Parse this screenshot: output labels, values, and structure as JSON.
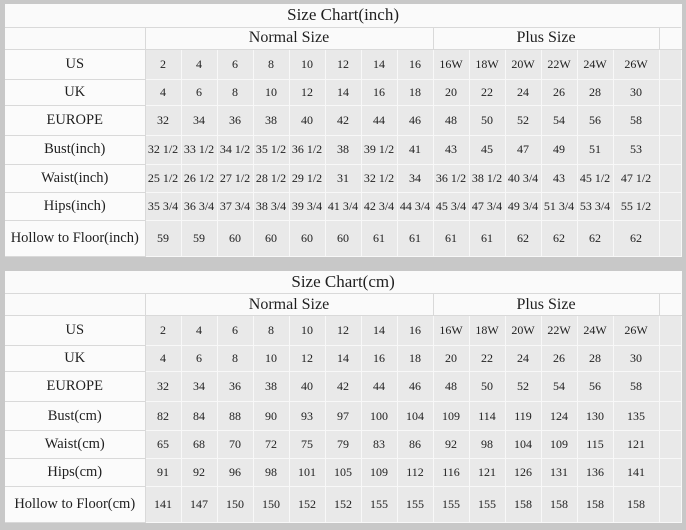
{
  "page": {
    "outer_background": "#c8c8c8",
    "table_background": "#fafafa",
    "data_cell_background": "#e9e9e9",
    "grid_line_light": "#f8f8f8",
    "grid_line_dark": "#d9d9d9",
    "text_color": "#1f1f1f"
  },
  "chart_data": [
    {
      "type": "table",
      "title": "Size Chart(inch)",
      "normal_label": "Normal Size",
      "plus_label": "Plus Size",
      "normal_columns": 8,
      "plus_columns": 6,
      "rows": [
        {
          "label": "US",
          "values": [
            "2",
            "4",
            "6",
            "8",
            "10",
            "12",
            "14",
            "16",
            "16W",
            "18W",
            "20W",
            "22W",
            "24W",
            "26W"
          ]
        },
        {
          "label": "UK",
          "values": [
            "4",
            "6",
            "8",
            "10",
            "12",
            "14",
            "16",
            "18",
            "20",
            "22",
            "24",
            "26",
            "28",
            "30"
          ]
        },
        {
          "label": "EUROPE",
          "values": [
            "32",
            "34",
            "36",
            "38",
            "40",
            "42",
            "44",
            "46",
            "48",
            "50",
            "52",
            "54",
            "56",
            "58"
          ]
        },
        {
          "label": "Bust(inch)",
          "values": [
            "32 1/2",
            "33 1/2",
            "34 1/2",
            "35 1/2",
            "36 1/2",
            "38",
            "39 1/2",
            "41",
            "43",
            "45",
            "47",
            "49",
            "51",
            "53"
          ]
        },
        {
          "label": "Waist(inch)",
          "values": [
            "25 1/2",
            "26 1/2",
            "27 1/2",
            "28 1/2",
            "29 1/2",
            "31",
            "32 1/2",
            "34",
            "36 1/2",
            "38 1/2",
            "40 3/4",
            "43",
            "45 1/2",
            "47 1/2"
          ]
        },
        {
          "label": "Hips(inch)",
          "values": [
            "35 3/4",
            "36 3/4",
            "37 3/4",
            "38 3/4",
            "39 3/4",
            "41 3/4",
            "42 3/4",
            "44 3/4",
            "45 3/4",
            "47 3/4",
            "49 3/4",
            "51 3/4",
            "53 3/4",
            "55 1/2"
          ]
        },
        {
          "label": "Hollow to Floor(inch)",
          "values": [
            "59",
            "59",
            "60",
            "60",
            "60",
            "60",
            "61",
            "61",
            "61",
            "61",
            "62",
            "62",
            "62",
            "62"
          ]
        }
      ]
    },
    {
      "type": "table",
      "title": "Size Chart(cm)",
      "normal_label": "Normal Size",
      "plus_label": "Plus Size",
      "normal_columns": 8,
      "plus_columns": 6,
      "rows": [
        {
          "label": "US",
          "values": [
            "2",
            "4",
            "6",
            "8",
            "10",
            "12",
            "14",
            "16",
            "16W",
            "18W",
            "20W",
            "22W",
            "24W",
            "26W"
          ]
        },
        {
          "label": "UK",
          "values": [
            "4",
            "6",
            "8",
            "10",
            "12",
            "14",
            "16",
            "18",
            "20",
            "22",
            "24",
            "26",
            "28",
            "30"
          ]
        },
        {
          "label": "EUROPE",
          "values": [
            "32",
            "34",
            "36",
            "38",
            "40",
            "42",
            "44",
            "46",
            "48",
            "50",
            "52",
            "54",
            "56",
            "58"
          ]
        },
        {
          "label": "Bust(cm)",
          "values": [
            "82",
            "84",
            "88",
            "90",
            "93",
            "97",
            "100",
            "104",
            "109",
            "114",
            "119",
            "124",
            "130",
            "135"
          ]
        },
        {
          "label": "Waist(cm)",
          "values": [
            "65",
            "68",
            "70",
            "72",
            "75",
            "79",
            "83",
            "86",
            "92",
            "98",
            "104",
            "109",
            "115",
            "121"
          ]
        },
        {
          "label": "Hips(cm)",
          "values": [
            "91",
            "92",
            "96",
            "98",
            "101",
            "105",
            "109",
            "112",
            "116",
            "121",
            "126",
            "131",
            "136",
            "141"
          ]
        },
        {
          "label": "Hollow to Floor(cm)",
          "values": [
            "141",
            "147",
            "150",
            "150",
            "152",
            "152",
            "155",
            "155",
            "155",
            "155",
            "158",
            "158",
            "158",
            "158"
          ]
        }
      ]
    }
  ]
}
